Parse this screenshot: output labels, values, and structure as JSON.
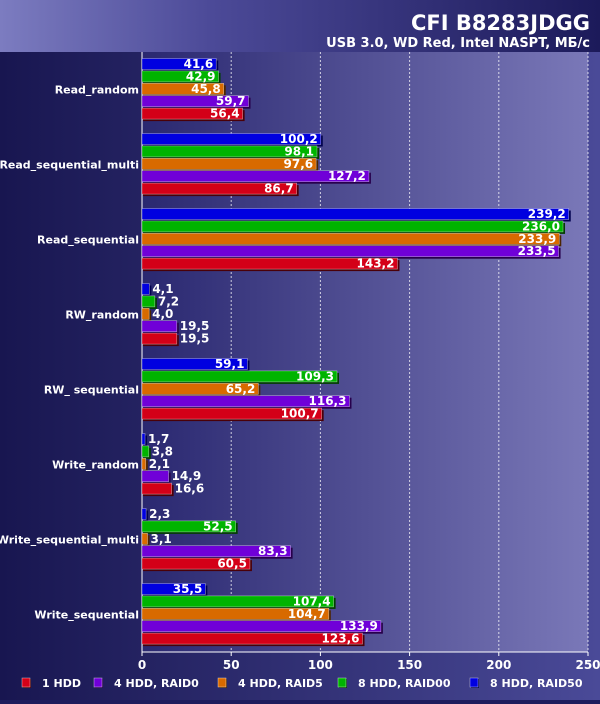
{
  "chart_data": {
    "type": "bar",
    "orientation": "horizontal",
    "title": "CFI B8283JDGG",
    "subtitle": "USB 3.0, WD Red, Intel NASPT, МБ/с",
    "xlabel": "",
    "ylabel": "",
    "xlim": [
      0,
      250
    ],
    "x_ticks": [
      "0",
      "50",
      "100",
      "150",
      "200",
      "250"
    ],
    "grid": true,
    "legend_position": "bottom",
    "categories": [
      "Read_random",
      "Read_sequential_multi",
      "Read_sequential",
      "RW_random",
      "RW_ sequential",
      "Write_random",
      "Write_sequential_multi",
      "Write_sequential"
    ],
    "series": [
      {
        "name": "8 HDD, RAID50",
        "color": "#0000e0",
        "values": [
          41.6,
          100.2,
          239.2,
          4.1,
          59.1,
          1.7,
          2.3,
          35.5
        ],
        "labels": [
          "41,6",
          "100,2",
          "239,2",
          "4,1",
          "59,1",
          "1,7",
          "2,3",
          "35,5"
        ]
      },
      {
        "name": "8 HDD, RAID00",
        "color": "#00b400",
        "values": [
          42.9,
          98.1,
          236.0,
          7.2,
          109.3,
          3.8,
          52.5,
          107.4
        ],
        "labels": [
          "42,9",
          "98,1",
          "236,0",
          "7,2",
          "109,3",
          "3,8",
          "52,5",
          "107,4"
        ]
      },
      {
        "name": "4 HDD, RAID5",
        "color": "#d86a00",
        "values": [
          45.8,
          97.6,
          233.9,
          4.0,
          65.2,
          2.1,
          3.1,
          104.7
        ],
        "labels": [
          "45,8",
          "97,6",
          "233,9",
          "4,0",
          "65,2",
          "2,1",
          "3,1",
          "104,7"
        ]
      },
      {
        "name": "4 HDD, RAID0",
        "color": "#7000d8",
        "values": [
          59.7,
          127.2,
          233.5,
          19.5,
          116.3,
          14.9,
          83.3,
          133.9
        ],
        "labels": [
          "59,7",
          "127,2",
          "233,5",
          "19,5",
          "116,3",
          "14,9",
          "83,3",
          "133,9"
        ]
      },
      {
        "name": "1 HDD",
        "color": "#d40018",
        "values": [
          56.4,
          86.7,
          143.2,
          19.5,
          100.7,
          16.6,
          60.5,
          123.6
        ],
        "labels": [
          "56,4",
          "86,7",
          "143,2",
          "19,5",
          "100,7",
          "16,6",
          "60,5",
          "123,6"
        ]
      }
    ],
    "legend_order": [
      "1 HDD",
      "4 HDD, RAID0",
      "4 HDD, RAID5",
      "8 HDD, RAID00",
      "8 HDD, RAID50"
    ]
  }
}
